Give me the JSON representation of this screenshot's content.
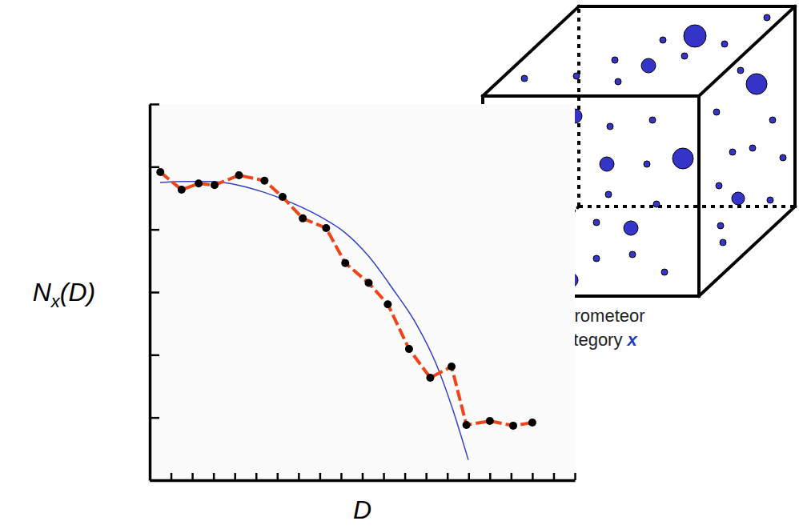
{
  "chart_data": {
    "type": "line",
    "xlabel": "D",
    "ylabel": "Nx(D)",
    "annotation": "Hydrometeor Category x",
    "log": "y",
    "tick_labels": false,
    "grid": false,
    "xlim": [
      0,
      20
    ],
    "xticks": [
      0,
      1,
      2,
      3,
      4,
      5,
      6,
      7,
      8,
      9,
      10,
      11,
      12,
      13,
      14,
      15,
      16,
      17,
      18,
      19,
      20
    ],
    "ylim": [
      1,
      1000000
    ],
    "yticks": [
      1,
      10,
      100,
      1000,
      10000,
      100000,
      1000000
    ],
    "series": [
      {
        "color": "#3344cc",
        "line_style": "solid",
        "marker": "none",
        "x": [
          0.49,
          1.62,
          2.75,
          4.26,
          5.39,
          6.52,
          8.02,
          9.15,
          10.28,
          11.41,
          12.54,
          13.48,
          14.24,
          14.99
        ],
        "values": [
          56000,
          58000,
          58000,
          50000,
          39000,
          28000,
          16000,
          9100,
          3800,
          1160,
          310,
          71,
          14,
          2.1
        ]
      },
      {
        "color": "#f0441a",
        "line_style": "dashed",
        "marker": "circle",
        "x": [
          0.5,
          1.5,
          2.3,
          3.05,
          4.2,
          5.4,
          6.25,
          7.2,
          8.3,
          9.2,
          10.3,
          11.2,
          12.2,
          13.2,
          14.2,
          14.9,
          16.0,
          17.1,
          18.0
        ],
        "values": [
          82000,
          43000,
          54000,
          51000,
          73000,
          60000,
          33000,
          15000,
          10500,
          2900,
          1400,
          640,
          124,
          43,
          65,
          7.6,
          8.8,
          7.4,
          8.3
        ]
      }
    ]
  }
}
